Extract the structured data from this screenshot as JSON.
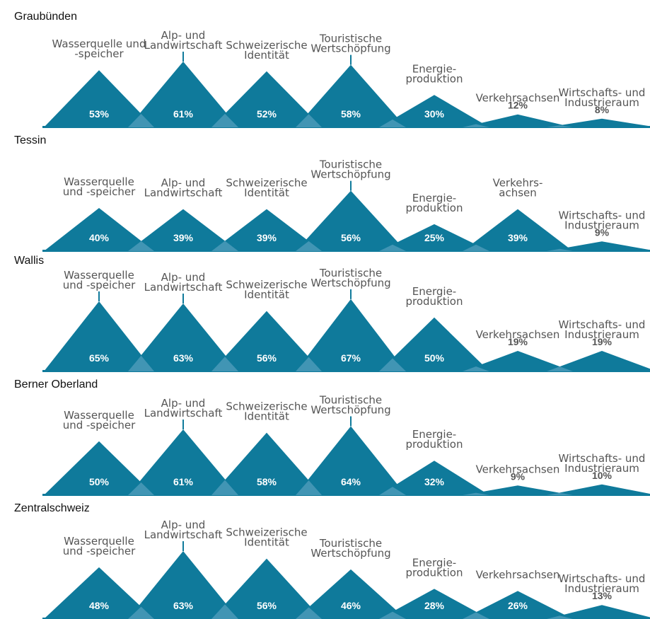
{
  "colors": {
    "peak": "#0f7a9b",
    "peak_overlap": "#4a9ab8",
    "baseline": "#0f7a9b",
    "value_on_peak": "#ffffff",
    "value_outside": "#555555",
    "category_text": "#555555",
    "title_text": "#111111"
  },
  "chart_data": {
    "type": "area",
    "unit": "%",
    "ylim": [
      0,
      70
    ],
    "categories": [
      "Wasserquelle und -speicher",
      "Alp- und Landwirtschaft",
      "Schweizerische Identität",
      "Touristische Wertschöpfung",
      "Energieproduktion",
      "Verkehrsachsen",
      "Wirtschafts- und Industrieraum"
    ],
    "series": [
      {
        "name": "Graubünden",
        "values": [
          53,
          61,
          52,
          58,
          30,
          12,
          8
        ],
        "labels": [
          [
            "Wasserquelle und",
            "-speicher"
          ],
          [
            "Alp- und",
            "Landwirtschaft"
          ],
          [
            "Schweizerische",
            "Identität"
          ],
          [
            "Touristische",
            "Wertschöpfung"
          ],
          [
            "Energie-",
            "produktion"
          ],
          [
            "Verkehrsachsen"
          ],
          [
            "Wirtschafts- und",
            "Industrieraum"
          ]
        ],
        "value_texts": [
          "53%",
          "61%",
          "52%",
          "58%",
          "30%",
          "12%",
          "8%"
        ]
      },
      {
        "name": "Tessin",
        "values": [
          40,
          39,
          39,
          56,
          25,
          39,
          9
        ],
        "labels": [
          [
            "Wasserquelle",
            "und -speicher"
          ],
          [
            "Alp- und",
            "Landwirtschaft"
          ],
          [
            "Schweizerische",
            "Identität"
          ],
          [
            "Touristische",
            "Wertschöpfung"
          ],
          [
            "Energie-",
            "produktion"
          ],
          [
            "Verkehrs-",
            "achsen"
          ],
          [
            "Wirtschafts- und",
            "Industrieraum"
          ]
        ],
        "value_texts": [
          "40%",
          "39%",
          "39%",
          "56%",
          "25%",
          "39%",
          "9%"
        ]
      },
      {
        "name": "Wallis",
        "values": [
          65,
          63,
          56,
          67,
          50,
          19,
          19
        ],
        "labels": [
          [
            "Wasserquelle",
            "und -speicher"
          ],
          [
            "Alp- und",
            "Landwirtschaft"
          ],
          [
            "Schweizerische",
            "Identität"
          ],
          [
            "Touristische",
            "Wertschöpfung"
          ],
          [
            "Energie-",
            "produktion"
          ],
          [
            "Verkehrsachsen"
          ],
          [
            "Wirtschafts- und",
            "Industrieraum"
          ]
        ],
        "value_texts": [
          "65%",
          "63%",
          "56%",
          "67%",
          "50%",
          "19%",
          "19%"
        ]
      },
      {
        "name": "Berner Oberland",
        "values": [
          50,
          61,
          58,
          64,
          32,
          9,
          10
        ],
        "labels": [
          [
            "Wasserquelle",
            "und -speicher"
          ],
          [
            "Alp- und",
            "Landwirtschaft"
          ],
          [
            "Schweizerische",
            "Identität"
          ],
          [
            "Touristische",
            "Wertschöpfung"
          ],
          [
            "Energie-",
            "produktion"
          ],
          [
            "Verkehrsachsen"
          ],
          [
            "Wirtschafts- und",
            "Industrieraum"
          ]
        ],
        "value_texts": [
          "50%",
          "61%",
          "58%",
          "64%",
          "32%",
          "9%",
          "10%"
        ]
      },
      {
        "name": "Zentralschweiz",
        "values": [
          48,
          63,
          56,
          46,
          28,
          26,
          13
        ],
        "labels": [
          [
            "Wasserquelle",
            "und -speicher"
          ],
          [
            "Alp- und",
            "Landwirtschaft"
          ],
          [
            "Schweizerische",
            "Identität"
          ],
          [
            "Touristische",
            "Wertschöpfung"
          ],
          [
            "Energie-",
            "produktion"
          ],
          [
            "Verkehrsachsen"
          ],
          [
            "Wirtschafts- und",
            "Industrieraum"
          ]
        ],
        "value_texts": [
          "48%",
          "63%",
          "56%",
          "46%",
          "28%",
          "26%",
          "13%"
        ]
      }
    ]
  }
}
